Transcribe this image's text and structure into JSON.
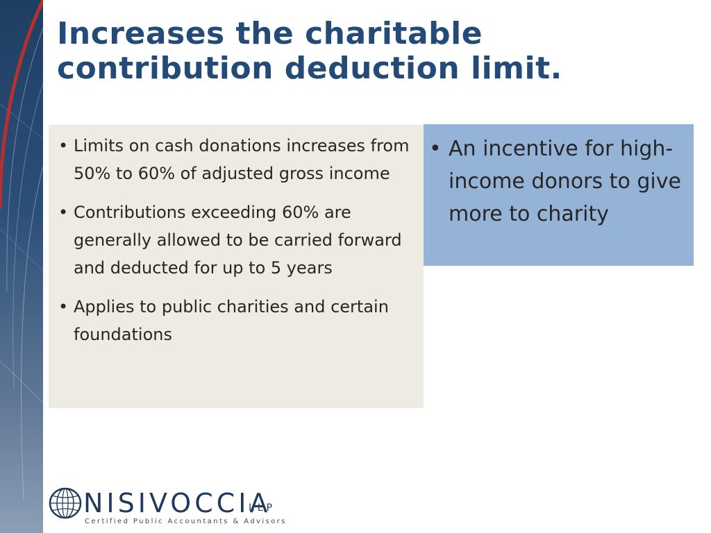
{
  "slide": {
    "title": "Increases the charitable contribution deduction limit.",
    "left_bullets": [
      "Limits on cash donations increases from 50% to 60% of adjusted gross income",
      "Contributions exceeding 60% are generally allowed to be carried forward and deducted for up to 5 years",
      "Applies to public charities and certain foundations"
    ],
    "right_bullets": [
      "An incentive for high-income donors to give more to charity"
    ]
  },
  "logo": {
    "wordmark": "NISIVOCCIA",
    "suffix": "LLP",
    "tagline": "Certified Public Accountants & Advisors"
  },
  "colors": {
    "title": "#244a78",
    "left_box": "#eeebe2",
    "right_box": "#95b3d7",
    "sidebar": "#2c4f78",
    "accent_red": "#b5302e"
  }
}
